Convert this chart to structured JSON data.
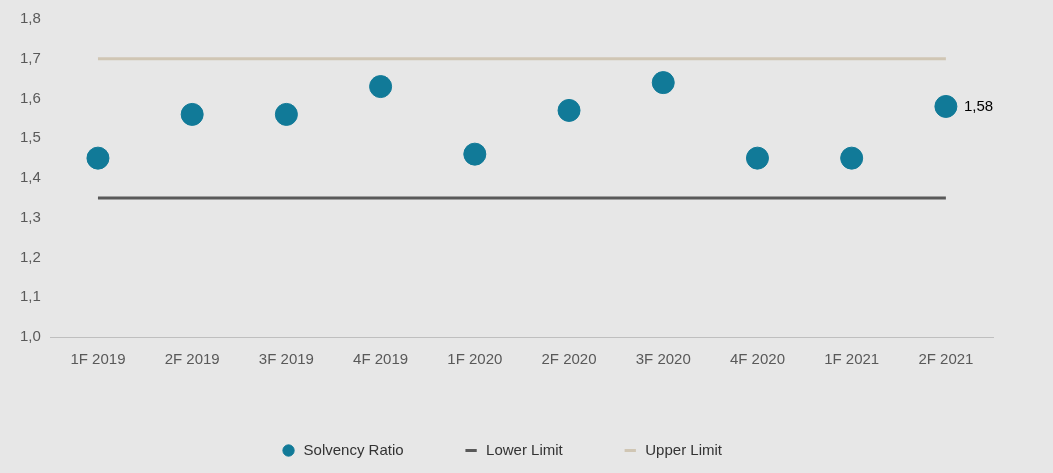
{
  "chart_data": {
    "type": "scatter",
    "categories": [
      "1F 2019",
      "2F 2019",
      "3F 2019",
      "4F 2019",
      "1F 2020",
      "2F 2020",
      "3F 2020",
      "4F 2020",
      "1F 2021",
      "2F 2021"
    ],
    "series": [
      {
        "name": "Solvency Ratio",
        "marker": "circle",
        "color": "#117a98",
        "values": [
          1.45,
          1.56,
          1.56,
          1.63,
          1.46,
          1.57,
          1.64,
          1.45,
          1.45,
          1.58
        ],
        "value_labels": [
          null,
          null,
          null,
          null,
          null,
          null,
          null,
          null,
          null,
          "1,58"
        ]
      },
      {
        "name": "Lower Limit",
        "type": "line",
        "color": "#595959",
        "values": [
          1.35,
          1.35,
          1.35,
          1.35,
          1.35,
          1.35,
          1.35,
          1.35,
          1.35,
          1.35
        ]
      },
      {
        "name": "Upper Limit",
        "type": "line",
        "color": "#d0c6b4",
        "values": [
          1.7,
          1.7,
          1.7,
          1.7,
          1.7,
          1.7,
          1.7,
          1.7,
          1.7,
          1.7
        ]
      }
    ],
    "ylim": [
      1.0,
      1.8
    ],
    "yticks": [
      {
        "value": 1.0,
        "label": "1,0"
      },
      {
        "value": 1.1,
        "label": "1,1"
      },
      {
        "value": 1.2,
        "label": "1,2"
      },
      {
        "value": 1.3,
        "label": "1,3"
      },
      {
        "value": 1.4,
        "label": "1,4"
      },
      {
        "value": 1.5,
        "label": "1,5"
      },
      {
        "value": 1.6,
        "label": "1,6"
      },
      {
        "value": 1.7,
        "label": "1,7"
      },
      {
        "value": 1.8,
        "label": "1,8"
      }
    ],
    "grid": false,
    "legend": "bottom"
  }
}
